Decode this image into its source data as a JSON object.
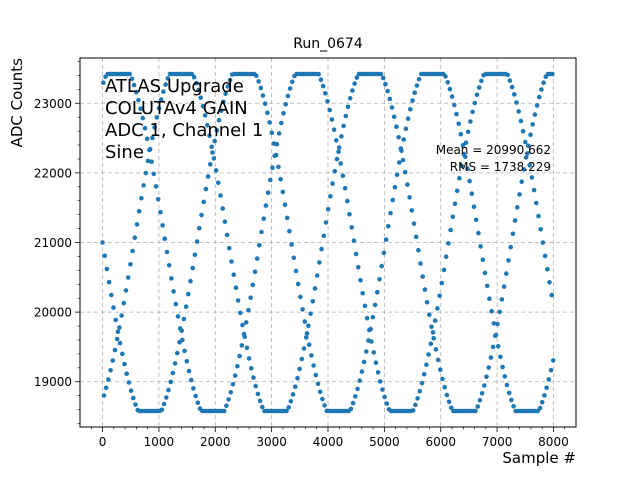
{
  "chart_data": {
    "type": "scatter",
    "title": "Run_0674",
    "xlabel": "Sample #",
    "ylabel": "ADC Counts",
    "xlim": [
      -400,
      8400
    ],
    "ylim": [
      18350,
      23650
    ],
    "xticks": [
      0,
      1000,
      2000,
      3000,
      4000,
      5000,
      6000,
      7000,
      8000
    ],
    "xtick_labels": [
      "0",
      "1000",
      "2000",
      "3000",
      "4000",
      "5000",
      "6000",
      "7000",
      "8000"
    ],
    "yticks": [
      19000,
      20000,
      21000,
      22000,
      23000
    ],
    "ytick_labels": [
      "19000",
      "20000",
      "21000",
      "22000",
      "23000"
    ],
    "grid": true,
    "grid_style": "dashed",
    "marker_color": "#1f77b4",
    "annotation_lines": [
      "ATLAS Upgrade",
      "COLUTAv4 GAIN",
      "ADC 1, Channel 1",
      "Sine"
    ],
    "stats_lines": [
      "Mean = 20990.662",
      "RMS = 1738.229"
    ],
    "series": [
      {
        "signal": "sine",
        "n_samples": 8000,
        "x_range": [
          0,
          7999
        ],
        "y_min": 18580,
        "y_max": 23420,
        "mean": 20990.662,
        "rms": 1738.229
      }
    ]
  }
}
